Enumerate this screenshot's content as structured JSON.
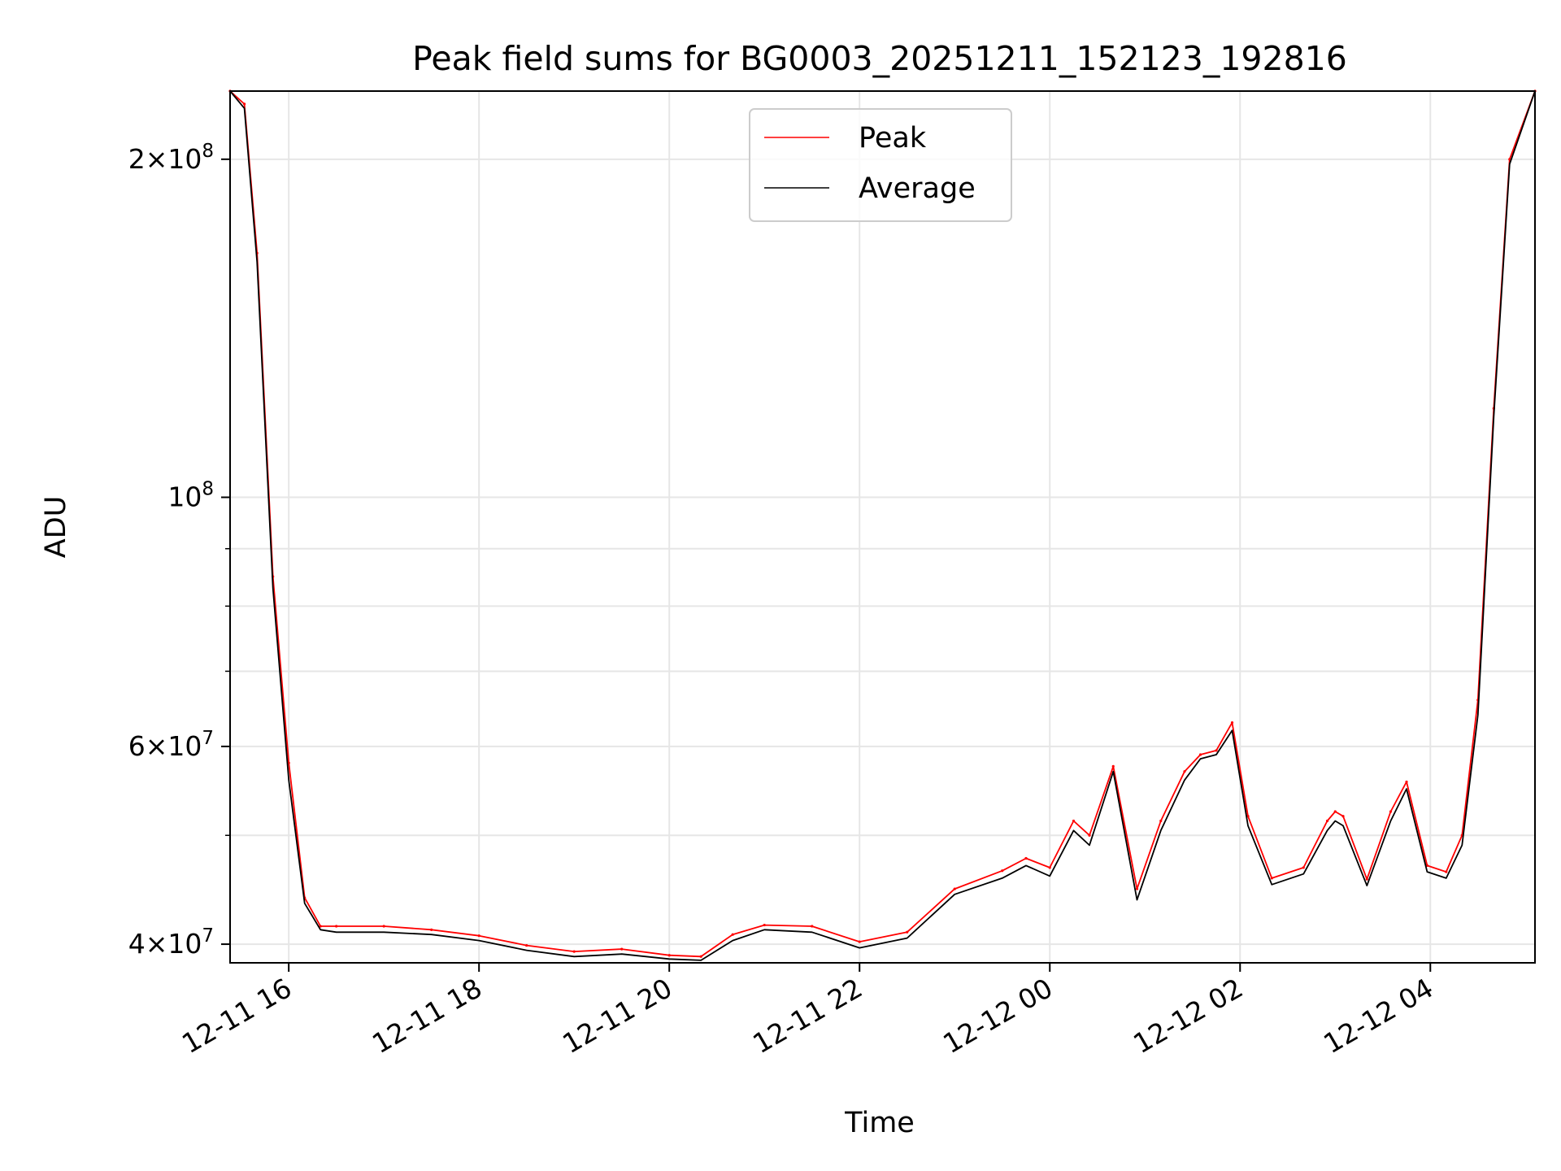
{
  "chart_data": {
    "type": "line",
    "title": "Peak field sums for BG0003_20251211_152123_192816",
    "xlabel": "Time",
    "ylabel": "ADU",
    "yscale": "log",
    "xlim": [
      "2025-12-11 15:23",
      "2025-12-12 05:06"
    ],
    "ylim": [
      38500000,
      230000000
    ],
    "grid": true,
    "legend_position": "top-center",
    "x_ticks": [
      {
        "value": "2025-12-11 16:00",
        "label": "12-11 16"
      },
      {
        "value": "2025-12-11 18:00",
        "label": "12-11 18"
      },
      {
        "value": "2025-12-11 20:00",
        "label": "12-11 20"
      },
      {
        "value": "2025-12-11 22:00",
        "label": "12-11 22"
      },
      {
        "value": "2025-12-12 00:00",
        "label": "12-12 00"
      },
      {
        "value": "2025-12-12 02:00",
        "label": "12-12 02"
      },
      {
        "value": "2025-12-12 04:00",
        "label": "12-12 04"
      }
    ],
    "y_ticks": [
      {
        "value": 40000000,
        "base": "4",
        "exp": "7"
      },
      {
        "value": 60000000,
        "base": "6",
        "exp": "7"
      },
      {
        "value": 100000000,
        "base": "",
        "exp": "8"
      },
      {
        "value": 200000000,
        "base": "2",
        "exp": "8"
      }
    ],
    "y_minor_ticks": [
      50000000,
      70000000,
      80000000,
      90000000
    ],
    "series": [
      {
        "name": "Peak",
        "color": "#ff0000",
        "x": [
          "2025-12-11 15:23",
          "2025-12-11 15:32",
          "2025-12-11 15:40",
          "2025-12-11 15:50",
          "2025-12-11 16:00",
          "2025-12-11 16:10",
          "2025-12-11 16:20",
          "2025-12-11 16:30",
          "2025-12-11 17:00",
          "2025-12-11 17:30",
          "2025-12-11 18:00",
          "2025-12-11 18:30",
          "2025-12-11 19:00",
          "2025-12-11 19:30",
          "2025-12-11 20:00",
          "2025-12-11 20:20",
          "2025-12-11 20:40",
          "2025-12-11 21:00",
          "2025-12-11 21:30",
          "2025-12-11 22:00",
          "2025-12-11 22:30",
          "2025-12-11 23:00",
          "2025-12-11 23:30",
          "2025-12-11 23:45",
          "2025-12-12 00:00",
          "2025-12-12 00:15",
          "2025-12-12 00:25",
          "2025-12-12 00:40",
          "2025-12-12 00:55",
          "2025-12-12 01:10",
          "2025-12-12 01:25",
          "2025-12-12 01:35",
          "2025-12-12 01:45",
          "2025-12-12 01:55",
          "2025-12-12 02:05",
          "2025-12-12 02:20",
          "2025-12-12 02:40",
          "2025-12-12 02:55",
          "2025-12-12 03:00",
          "2025-12-12 03:05",
          "2025-12-12 03:20",
          "2025-12-12 03:35",
          "2025-12-12 03:45",
          "2025-12-12 03:58",
          "2025-12-12 04:10",
          "2025-12-12 04:20",
          "2025-12-12 04:30",
          "2025-12-12 04:40",
          "2025-12-12 04:50",
          "2025-12-12 05:06"
        ],
        "y": [
          230000000,
          224000000,
          165000000,
          85000000,
          58000000,
          44000000,
          41500000,
          41500000,
          41500000,
          41200000,
          40700000,
          39900000,
          39400000,
          39600000,
          39100000,
          39000000,
          40800000,
          41600000,
          41500000,
          40200000,
          41000000,
          44800000,
          46500000,
          47700000,
          46800000,
          51500000,
          50000000,
          57600000,
          44800000,
          51500000,
          57000000,
          59000000,
          59500000,
          63000000,
          52000000,
          45800000,
          46800000,
          51500000,
          52500000,
          52000000,
          45700000,
          52500000,
          55800000,
          47000000,
          46400000,
          50000000,
          66000000,
          120000000,
          200000000,
          230000000
        ]
      },
      {
        "name": "Average",
        "color": "#000000",
        "x": [
          "2025-12-11 15:23",
          "2025-12-11 15:32",
          "2025-12-11 15:40",
          "2025-12-11 15:50",
          "2025-12-11 16:00",
          "2025-12-11 16:10",
          "2025-12-11 16:20",
          "2025-12-11 16:30",
          "2025-12-11 17:00",
          "2025-12-11 17:30",
          "2025-12-11 18:00",
          "2025-12-11 18:30",
          "2025-12-11 19:00",
          "2025-12-11 19:30",
          "2025-12-11 20:00",
          "2025-12-11 20:20",
          "2025-12-11 20:40",
          "2025-12-11 21:00",
          "2025-12-11 21:30",
          "2025-12-11 22:00",
          "2025-12-11 22:30",
          "2025-12-11 23:00",
          "2025-12-11 23:30",
          "2025-12-11 23:45",
          "2025-12-12 00:00",
          "2025-12-12 00:15",
          "2025-12-12 00:25",
          "2025-12-12 00:40",
          "2025-12-12 00:55",
          "2025-12-12 01:10",
          "2025-12-12 01:25",
          "2025-12-12 01:35",
          "2025-12-12 01:45",
          "2025-12-12 01:55",
          "2025-12-12 02:05",
          "2025-12-12 02:20",
          "2025-12-12 02:40",
          "2025-12-12 02:55",
          "2025-12-12 03:00",
          "2025-12-12 03:05",
          "2025-12-12 03:20",
          "2025-12-12 03:35",
          "2025-12-12 03:45",
          "2025-12-12 03:58",
          "2025-12-12 04:10",
          "2025-12-12 04:20",
          "2025-12-12 04:30",
          "2025-12-12 04:40",
          "2025-12-12 04:50",
          "2025-12-12 05:06"
        ],
        "y": [
          230000000,
          222000000,
          162000000,
          83000000,
          56000000,
          43500000,
          41200000,
          41000000,
          41000000,
          40800000,
          40300000,
          39500000,
          39000000,
          39200000,
          38800000,
          38700000,
          40300000,
          41200000,
          41000000,
          39700000,
          40500000,
          44300000,
          45800000,
          47000000,
          46000000,
          50500000,
          49000000,
          57000000,
          43800000,
          50500000,
          56000000,
          58500000,
          59000000,
          62000000,
          51000000,
          45200000,
          46200000,
          50500000,
          51500000,
          51000000,
          45100000,
          51500000,
          55000000,
          46400000,
          45800000,
          49000000,
          64000000,
          118000000,
          198000000,
          230000000
        ]
      }
    ]
  }
}
